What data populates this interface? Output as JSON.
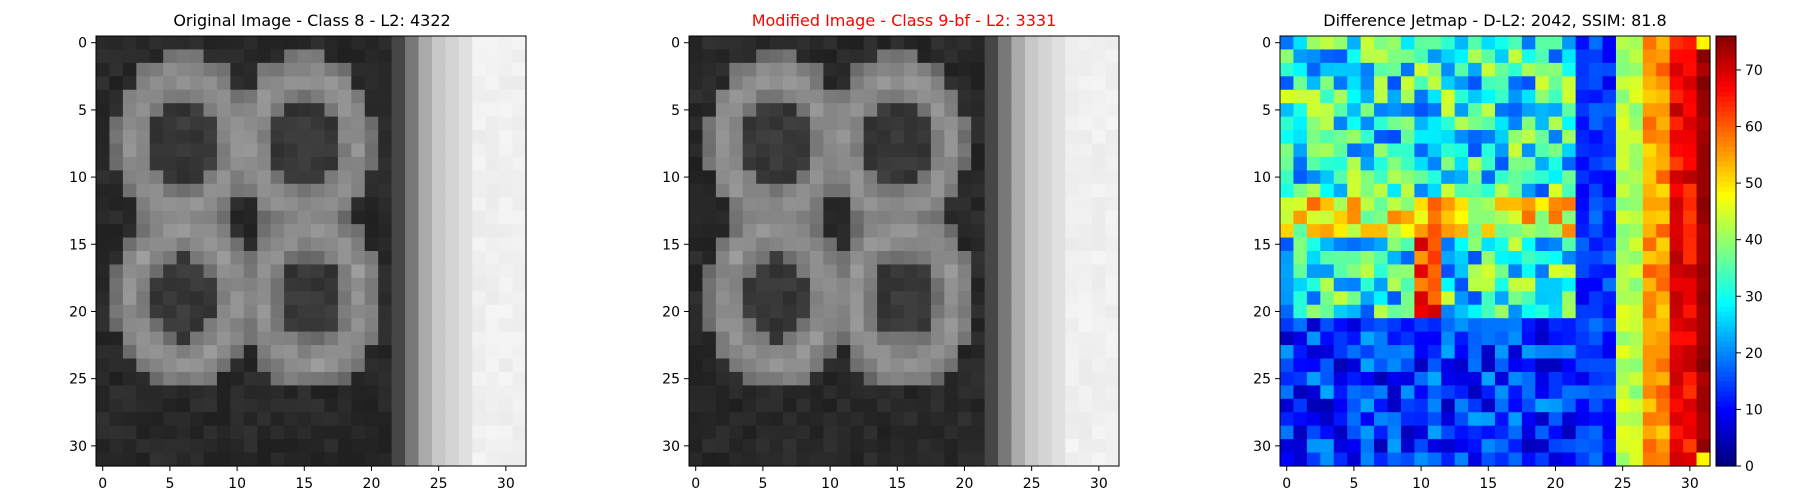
{
  "chart_data": [
    {
      "type": "heatmap",
      "title": "Original Image - Class 8 - L2: 4322",
      "title_color": "#000000",
      "colormap": "gray",
      "grid_size": [
        32,
        32
      ],
      "xlim": [
        -0.5,
        31.5
      ],
      "ylim": [
        31.5,
        -0.5
      ],
      "xticks": [
        0,
        5,
        10,
        15,
        20,
        25,
        30
      ],
      "yticks": [
        0,
        5,
        10,
        15,
        20,
        25,
        30
      ],
      "grid": false,
      "description_values": "32x32 grayscale image of handwritten-like digits '8' and '6' glyphs with a bright vertical band on the right"
    },
    {
      "type": "heatmap",
      "title": "Modified Image - Class 9-bf - L2: 3331",
      "title_color": "#ff0000",
      "colormap": "gray",
      "grid_size": [
        32,
        32
      ],
      "xlim": [
        -0.5,
        31.5
      ],
      "ylim": [
        31.5,
        -0.5
      ],
      "xticks": [
        0,
        5,
        10,
        15,
        20,
        25,
        30
      ],
      "yticks": [
        0,
        5,
        10,
        15,
        20,
        25,
        30
      ],
      "grid": false
    },
    {
      "type": "heatmap",
      "title": "Difference Jetmap - D-L2: 2042, SSIM: 81.8",
      "title_color": "#000000",
      "colormap": "jet",
      "grid_size": [
        32,
        32
      ],
      "xlim": [
        -0.5,
        31.5
      ],
      "ylim": [
        31.5,
        -0.5
      ],
      "xticks": [
        0,
        5,
        10,
        15,
        20,
        25,
        30
      ],
      "yticks": [
        0,
        5,
        10,
        15,
        20,
        25,
        30
      ],
      "colorbar": {
        "range": [
          0,
          76
        ],
        "ticks": [
          0,
          10,
          20,
          30,
          40,
          50,
          60,
          70
        ]
      },
      "grid": false
    }
  ]
}
